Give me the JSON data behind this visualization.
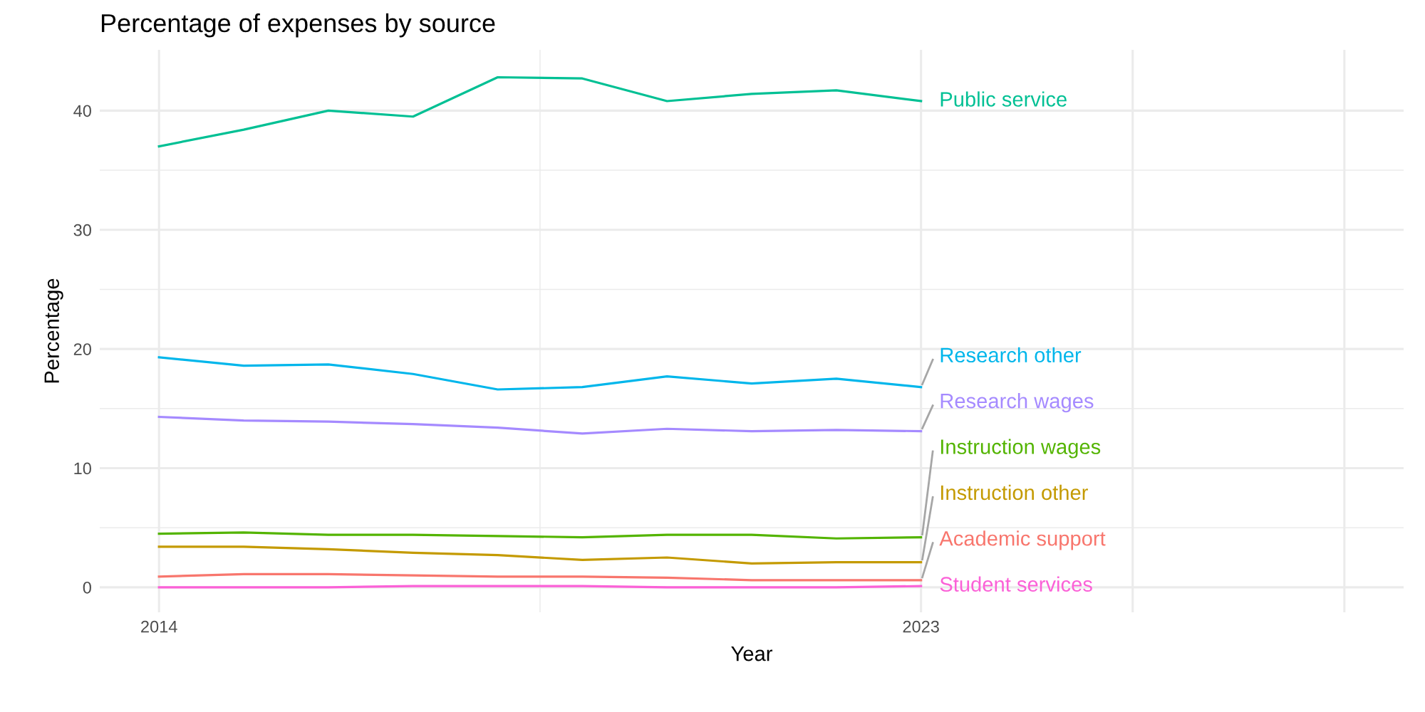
{
  "chart_data": {
    "type": "line",
    "title": "Percentage of expenses by source",
    "xlabel": "Year",
    "ylabel": "Percentage",
    "x": [
      2014,
      2015,
      2016,
      2017,
      2018,
      2019,
      2020,
      2021,
      2022,
      2023
    ],
    "xlim": [
      2013.3,
      2028.7
    ],
    "xticks": [
      2014,
      2023,
      {
        "value": 2025.5,
        "label": null
      },
      {
        "value": 2028,
        "label": null
      }
    ],
    "ylim": [
      -2.1,
      45.1
    ],
    "yticks": [
      0,
      10,
      20,
      30,
      40
    ],
    "grid": true,
    "legend": false,
    "marker": "none",
    "line_style": "solid",
    "series": [
      {
        "name": "Public service",
        "color": "#00C094",
        "values": [
          37.0,
          38.4,
          40.0,
          39.5,
          42.8,
          42.7,
          40.8,
          41.4,
          41.7,
          40.8
        ]
      },
      {
        "name": "Research other",
        "color": "#00B6EB",
        "values": [
          19.3,
          18.6,
          18.7,
          17.9,
          16.6,
          16.8,
          17.7,
          17.1,
          17.5,
          16.8
        ]
      },
      {
        "name": "Research wages",
        "color": "#A58AFF",
        "values": [
          14.3,
          14.0,
          13.9,
          13.7,
          13.4,
          12.9,
          13.3,
          13.1,
          13.2,
          13.1
        ]
      },
      {
        "name": "Instruction wages",
        "color": "#53B400",
        "values": [
          4.5,
          4.6,
          4.4,
          4.4,
          4.3,
          4.2,
          4.4,
          4.4,
          4.1,
          4.2
        ]
      },
      {
        "name": "Instruction other",
        "color": "#C49A00",
        "values": [
          3.4,
          3.4,
          3.2,
          2.9,
          2.7,
          2.3,
          2.5,
          2.0,
          2.1,
          2.1
        ]
      },
      {
        "name": "Academic support",
        "color": "#F8766D",
        "values": [
          0.9,
          1.1,
          1.1,
          1.0,
          0.9,
          0.9,
          0.8,
          0.6,
          0.6,
          0.6
        ]
      },
      {
        "name": "Student services",
        "color": "#FB61D7",
        "values": [
          0.0,
          0.0,
          0.0,
          0.1,
          0.1,
          0.1,
          0.0,
          0.0,
          0.0,
          0.1
        ]
      }
    ]
  }
}
